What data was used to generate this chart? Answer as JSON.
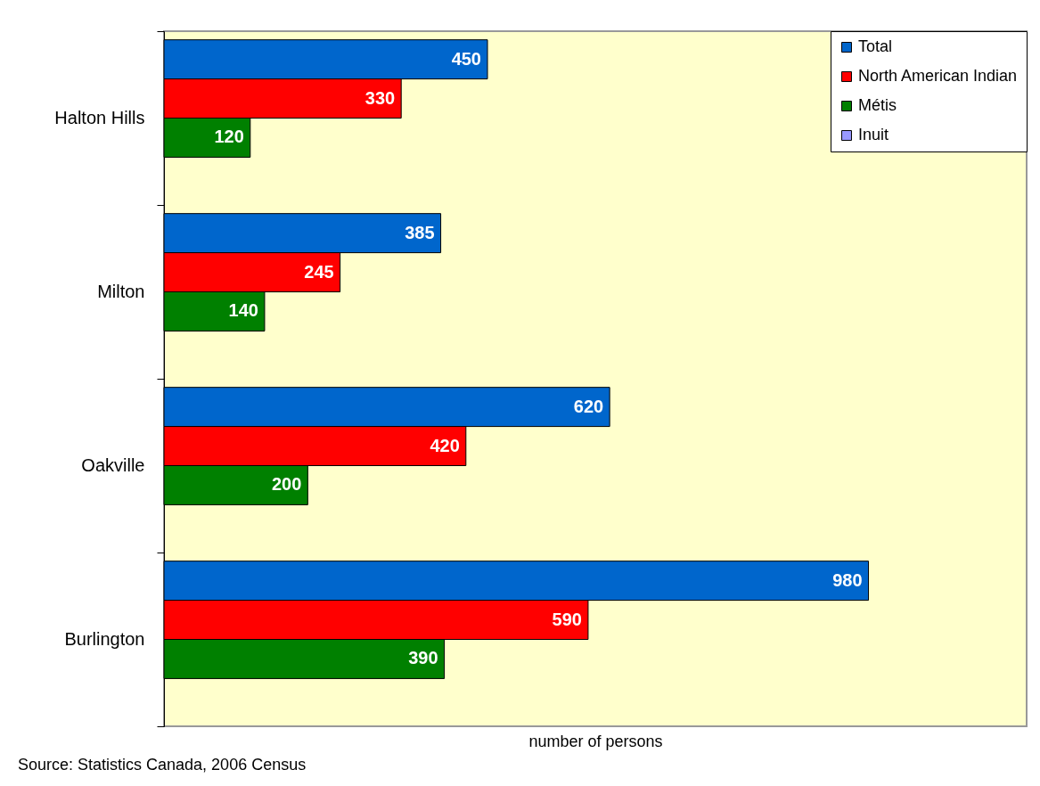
{
  "chart_data": {
    "type": "bar",
    "orientation": "horizontal",
    "categories": [
      "Halton Hills",
      "Milton",
      "Oakville",
      "Burlington"
    ],
    "series": [
      {
        "name": "Total",
        "color": "#0066cc",
        "values": [
          450,
          385,
          620,
          980
        ]
      },
      {
        "name": "North American Indian",
        "color": "#ff0000",
        "values": [
          330,
          245,
          420,
          590
        ]
      },
      {
        "name": "Métis",
        "color": "#008000",
        "values": [
          120,
          140,
          200,
          390
        ]
      },
      {
        "name": "Inuit",
        "color": "#9999ff",
        "values": [
          null,
          null,
          null,
          null
        ]
      }
    ],
    "xlim": [
      0,
      1200
    ],
    "xlabel": "number of persons",
    "annotations": [
      "Source: Statistics Canada, 2006 Census"
    ],
    "data_labels": true,
    "legend": "top right",
    "tick_labels": "y"
  }
}
